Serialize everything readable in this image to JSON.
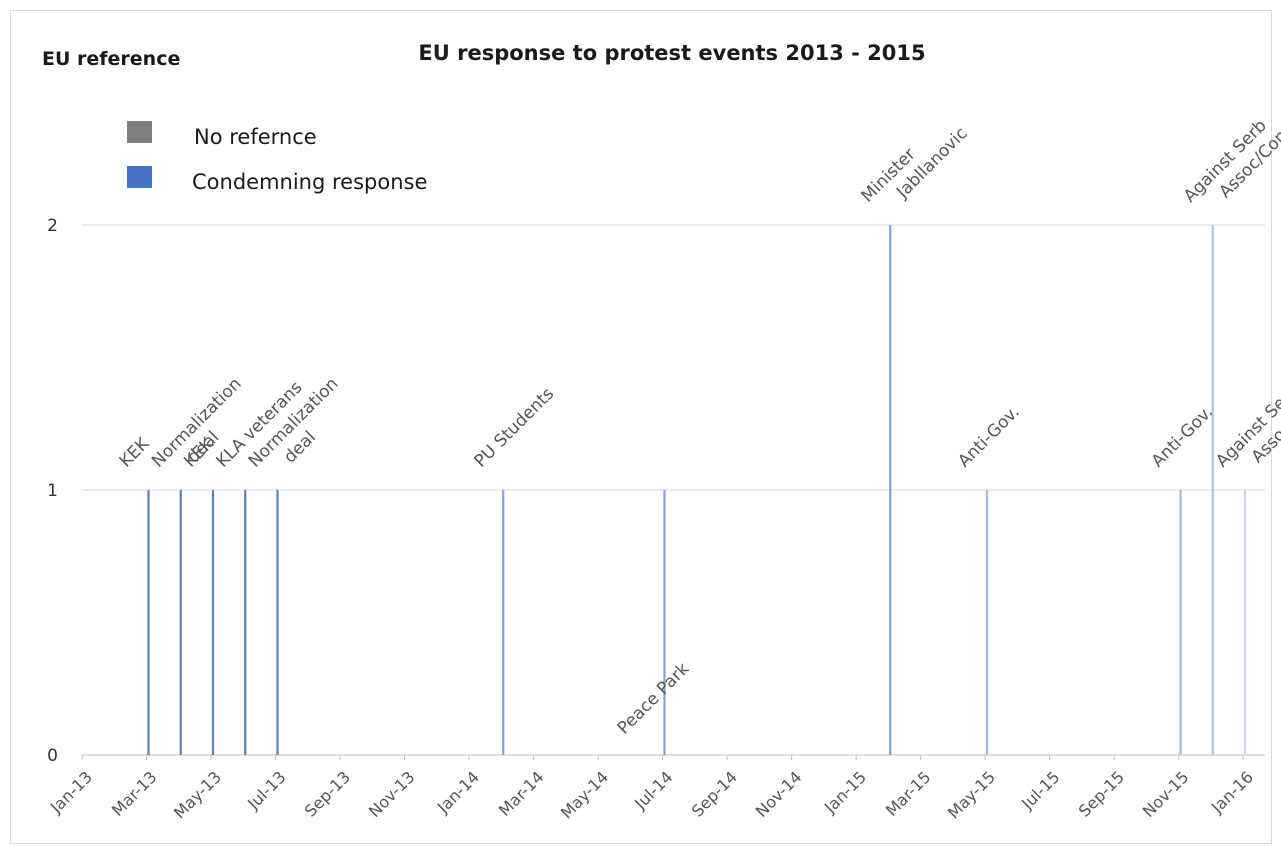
{
  "chart_data": {
    "type": "bar",
    "title": "EU response to protest events  2013 - 2015",
    "ylabel": "EU reference",
    "xlabel": "",
    "ylim": [
      0,
      2
    ],
    "yticks": [
      "0",
      "1",
      "2"
    ],
    "x_tick_labels": [
      "Jan-13",
      "Mar-13",
      "May-13",
      "Jul-13",
      "Sep-13",
      "Nov-13",
      "Jan-14",
      "Mar-14",
      "May-14",
      "Jul-14",
      "Sep-14",
      "Nov-14",
      "Jan-15",
      "Mar-15",
      "May-15",
      "Jul-15",
      "Sep-15",
      "Nov-15",
      "Jan-16"
    ],
    "grid": true,
    "legend_position": "top-left",
    "legend": [
      {
        "label": "No refernce",
        "color": "#808080"
      },
      {
        "label": "Condemning response",
        "color": "#4472c4"
      }
    ],
    "events": [
      {
        "date": "2013-02",
        "value": 1,
        "label": [
          "KEK"
        ],
        "color": "#5b7fb8"
      },
      {
        "date": "2013-03",
        "value": 1,
        "label": [
          "Normalization",
          "deal"
        ],
        "color": "#5b7fb8"
      },
      {
        "date": "2013-04",
        "value": 1,
        "label": [
          "KEK"
        ],
        "color": "#5b7fb8"
      },
      {
        "date": "2013-05",
        "value": 1,
        "label": [
          "KLA veterans"
        ],
        "color": "#5b7fb8"
      },
      {
        "date": "2013-06",
        "value": 1,
        "label": [
          "Normalization",
          "deal"
        ],
        "color": "#5b7fb8"
      },
      {
        "date": "2014-01",
        "value": 1,
        "label": [
          "PU Students"
        ],
        "color": "#7fa3d6"
      },
      {
        "date": "2014-06",
        "value": 1,
        "label": [],
        "color": "#7fa3d6"
      },
      {
        "date": "2015-01",
        "value": 2,
        "label": [
          "Minister",
          "Jabllanovic"
        ],
        "color": "#7fa3d6"
      },
      {
        "date": "2015-04",
        "value": 1,
        "label": [
          "Anti-Gov."
        ],
        "color": "#9dbbe3"
      },
      {
        "date": "2015-10",
        "value": 1,
        "label": [
          "Anti-Gov."
        ],
        "color": "#9dbbe3"
      },
      {
        "date": "2015-11",
        "value": 2,
        "label": [
          "Against Serb",
          "Assoc/Comm"
        ],
        "color": "#a9c4e8"
      },
      {
        "date": "2015-12",
        "value": 1,
        "label": [
          "Against Serb",
          "Assoc/Comm"
        ],
        "color": "#c6d7ef"
      }
    ],
    "annotations": [
      {
        "text": "Peace Park",
        "date": "2014-06",
        "value": 0
      }
    ]
  }
}
